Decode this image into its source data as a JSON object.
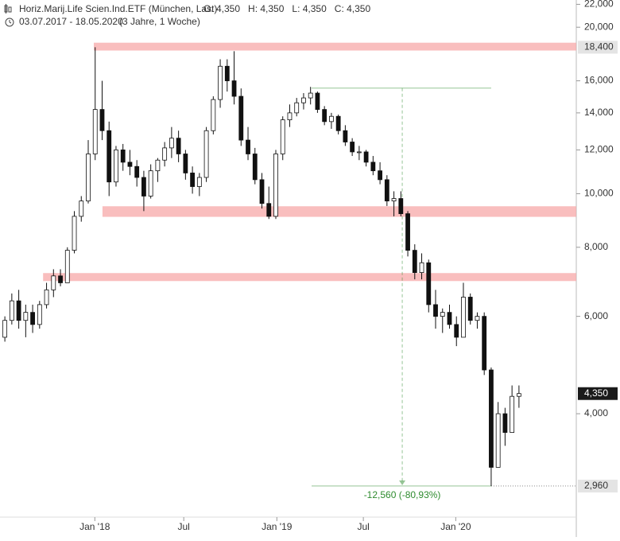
{
  "chart_data": {
    "type": "candlestick",
    "title": "Horiz.Marij.Life Scien.Ind.ETF (München, Last)",
    "ohlc_labels": [
      "O: 4,350",
      "H: 4,350",
      "L: 4,350",
      "C: 4,350"
    ],
    "period": "03.07.2017 - 18.05.2020",
    "period_note": "(3 Jahre, 1 Woche)",
    "log_scale": true,
    "x": [
      0,
      2,
      4,
      6,
      8,
      10,
      12,
      14,
      16,
      18,
      20,
      22,
      24,
      26,
      28,
      30,
      32,
      34,
      36,
      38,
      40,
      42,
      44,
      46,
      48,
      50,
      52,
      54,
      56,
      58,
      60,
      62,
      64,
      66,
      68,
      70,
      72,
      74,
      76,
      78,
      80,
      82,
      84,
      86,
      88,
      90,
      92,
      94,
      96,
      98,
      100,
      102,
      104,
      106,
      108,
      110,
      112,
      114,
      116,
      118,
      120,
      122,
      124,
      126,
      128,
      130,
      132,
      134,
      136,
      138,
      140,
      142,
      144,
      146,
      148
    ],
    "open": [
      5500,
      5900,
      6400,
      5900,
      6100,
      5800,
      6300,
      6700,
      7100,
      6900,
      7900,
      9100,
      9700,
      11800,
      14200,
      13000,
      10500,
      12000,
      11400,
      11200,
      10700,
      9900,
      11000,
      11500,
      12100,
      12600,
      11800,
      10900,
      10300,
      10700,
      13000,
      14800,
      17000,
      16000,
      15000,
      12500,
      11800,
      10600,
      9600,
      9100,
      11800,
      13600,
      14000,
      14600,
      14900,
      15200,
      14200,
      13500,
      13800,
      13000,
      12400,
      11900,
      11900,
      11400,
      11000,
      10600,
      9700,
      9800,
      9200,
      7900,
      7200,
      7500,
      6300,
      6000,
      6100,
      5800,
      5500,
      6500,
      5900,
      6000,
      4800,
      3200,
      4000,
      3700,
      4300
    ],
    "high": [
      6000,
      6600,
      6700,
      6300,
      6300,
      6400,
      6900,
      7300,
      7300,
      8000,
      9300,
      9900,
      12500,
      18400,
      16000,
      13500,
      12200,
      12300,
      12000,
      11500,
      11000,
      11300,
      11600,
      12400,
      13200,
      13000,
      12000,
      11200,
      10900,
      13200,
      15000,
      17500,
      17500,
      18100,
      15500,
      13200,
      12100,
      10900,
      10300,
      12000,
      13800,
      14500,
      14900,
      15200,
      15600,
      15300,
      14400,
      14000,
      13900,
      13300,
      12600,
      12200,
      12000,
      11700,
      11400,
      10800,
      10100,
      10100,
      9300,
      8100,
      7800,
      7600,
      6700,
      6200,
      6300,
      6000,
      6900,
      6600,
      6100,
      6100,
      4850,
      4200,
      4100,
      4500,
      4500
    ],
    "low": [
      5400,
      5800,
      5700,
      5500,
      5600,
      5700,
      6200,
      6500,
      6800,
      6900,
      7800,
      8900,
      9600,
      11500,
      12500,
      9900,
      10300,
      11000,
      10800,
      10300,
      9300,
      9800,
      10500,
      11200,
      11600,
      11400,
      10600,
      10000,
      9900,
      10500,
      12800,
      14300,
      15300,
      14500,
      12200,
      11500,
      10400,
      9400,
      9000,
      9000,
      11500,
      13200,
      13800,
      14200,
      14500,
      14000,
      13300,
      13100,
      12800,
      12200,
      11700,
      11500,
      11200,
      10800,
      10400,
      9500,
      9100,
      9100,
      7700,
      7000,
      7000,
      6100,
      5700,
      5600,
      5700,
      5300,
      5500,
      5800,
      5700,
      4700,
      2960,
      3200,
      3500,
      3700,
      4100
    ],
    "close": [
      5900,
      6400,
      5900,
      6100,
      5800,
      6300,
      6700,
      7100,
      6900,
      7900,
      9100,
      9700,
      11800,
      14200,
      13000,
      10500,
      12000,
      11400,
      11200,
      10700,
      9900,
      11000,
      11500,
      12100,
      12600,
      11800,
      10900,
      10300,
      10700,
      13000,
      14800,
      17000,
      16000,
      15000,
      12500,
      11800,
      10600,
      9600,
      9100,
      11800,
      13600,
      14000,
      14600,
      14900,
      15200,
      14200,
      13500,
      13800,
      13000,
      12400,
      11900,
      11900,
      11400,
      11000,
      10600,
      9700,
      9800,
      9200,
      7900,
      7200,
      7500,
      6300,
      6000,
      6100,
      5800,
      5500,
      6500,
      5900,
      6000,
      4800,
      3200,
      4000,
      3700,
      4300,
      4350
    ],
    "xlim": [
      -1.4,
      164.5
    ],
    "xticks": [
      {
        "value": 25.9,
        "label": "Jan '18"
      },
      {
        "value": 51.5,
        "label": "Jul"
      },
      {
        "value": 78.3,
        "label": "Jan '19"
      },
      {
        "value": 103.2,
        "label": "Jul"
      },
      {
        "value": 129.8,
        "label": "Jan '20"
      }
    ],
    "ylim": [
      2450,
      22400
    ],
    "yticks": [
      {
        "value": 22000,
        "label": "22,000"
      },
      {
        "value": 20000,
        "label": "20,000"
      },
      {
        "value": 16000,
        "label": "16,000"
      },
      {
        "value": 14000,
        "label": "14,000"
      },
      {
        "value": 12000,
        "label": "12,000"
      },
      {
        "value": 10000,
        "label": "10,000"
      },
      {
        "value": 8000,
        "label": "8,000"
      },
      {
        "value": 6000,
        "label": "6,000"
      },
      {
        "value": 4000,
        "label": "4,000"
      }
    ],
    "zones": [
      {
        "from": 25.6,
        "low": 18150,
        "high": 18750
      },
      {
        "from": 28.1,
        "low": 9080,
        "high": 9490
      },
      {
        "from": 11,
        "low": 6950,
        "high": 7185
      }
    ],
    "price_markers": [
      {
        "value": 18400,
        "label": "18,400",
        "color": "#e4e4e4",
        "text_color": "#333333"
      },
      {
        "value": 4350,
        "label": "4,350",
        "color": "#1a1a1a",
        "text_color": "#ffffff"
      },
      {
        "value": 2960,
        "label": "2,960",
        "color": "#e4e4e4",
        "text_color": "#333333"
      }
    ],
    "measure": {
      "x": 114.4,
      "from_x": 88.3,
      "to_x": 140,
      "from": 15520,
      "to": 2960,
      "label": "-12,560 (-80,93%)",
      "color": "#2e8b2e"
    }
  }
}
